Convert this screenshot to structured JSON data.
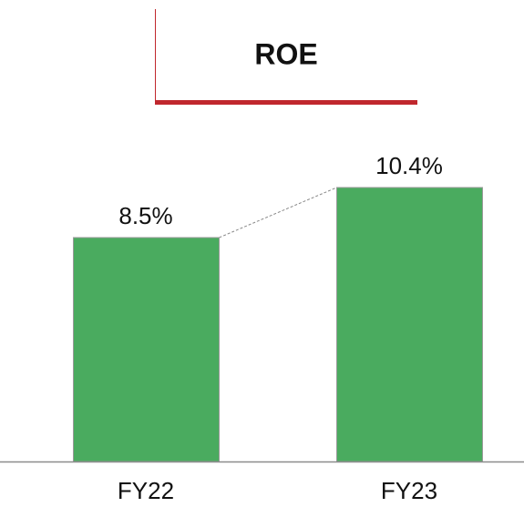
{
  "chart_data": {
    "type": "bar",
    "title": "ROE",
    "categories": [
      "FY22",
      "FY23"
    ],
    "values": [
      8.5,
      10.4
    ],
    "value_labels": [
      "8.5%",
      "10.4%"
    ],
    "color": "#4aab5f"
  }
}
